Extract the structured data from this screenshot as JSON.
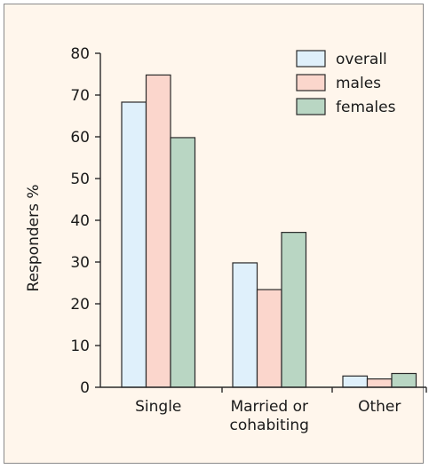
{
  "chart_data": {
    "type": "bar",
    "title": "",
    "xlabel": "",
    "ylabel": "Responders %",
    "ylim": [
      0,
      80
    ],
    "yticks": [
      0,
      10,
      20,
      30,
      40,
      50,
      60,
      70,
      80
    ],
    "categories": [
      [
        "Single"
      ],
      [
        "Married or",
        "cohabiting"
      ],
      [
        "Other"
      ]
    ],
    "series": [
      {
        "name": "overall",
        "color": "#dff0fb",
        "values": [
          68.3,
          29.8,
          2.7
        ]
      },
      {
        "name": "males",
        "color": "#fbd6cc",
        "values": [
          74.8,
          23.4,
          2.0
        ]
      },
      {
        "name": "females",
        "color": "#b9d6c3",
        "values": [
          59.8,
          37.1,
          3.3
        ]
      }
    ],
    "grid": false,
    "legend_position": "top-right"
  }
}
